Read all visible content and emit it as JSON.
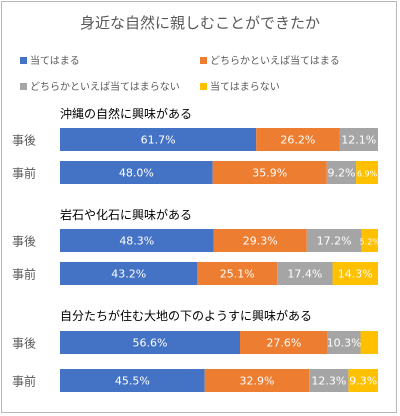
{
  "chart_data": {
    "type": "bar",
    "stacked": "percent",
    "orientation": "horizontal",
    "title": "身近な自然に親しむことができたか",
    "legend": [
      {
        "name": "当てはまる",
        "color": "#4472c4"
      },
      {
        "name": "どちらかといえば当てはまる",
        "color": "#ed7d31"
      },
      {
        "name": "どちらかといえば当てはまらない",
        "color": "#a5a5a5"
      },
      {
        "name": "当てはまらない",
        "color": "#ffc000"
      }
    ],
    "legend_position": "top",
    "groups": [
      {
        "title": "沖縄の自然に興味がある",
        "rows": [
          {
            "label": "事後",
            "values": [
              61.7,
              26.2,
              12.1,
              0
            ],
            "labels": [
              "61.7%",
              "26.2%",
              "12.1%",
              ""
            ]
          },
          {
            "label": "事前",
            "values": [
              48.0,
              35.9,
              9.2,
              6.9
            ],
            "labels": [
              "48.0%",
              "35.9%",
              "9.2%",
              "6.9%"
            ]
          }
        ]
      },
      {
        "title": "岩石や化石に興味がある",
        "rows": [
          {
            "label": "事後",
            "values": [
              48.3,
              29.3,
              17.2,
              5.2
            ],
            "labels": [
              "48.3%",
              "29.3%",
              "17.2%",
              "5.2%"
            ]
          },
          {
            "label": "事前",
            "values": [
              43.2,
              25.1,
              17.4,
              14.3
            ],
            "labels": [
              "43.2%",
              "25.1%",
              "17.4%",
              "14.3%"
            ]
          }
        ]
      },
      {
        "title": "自分たちが住む大地の下のようすに興味がある",
        "rows": [
          {
            "label": "事後",
            "values": [
              56.6,
              27.6,
              10.3,
              5.5
            ],
            "labels": [
              "56.6%",
              "27.6%",
              "10.3%",
              ""
            ]
          },
          {
            "label": "事前",
            "values": [
              45.5,
              32.9,
              12.3,
              9.3
            ],
            "labels": [
              "45.5%",
              "32.9%",
              "12.3%",
              "9.3%"
            ]
          }
        ]
      }
    ],
    "xlim": [
      0,
      100
    ]
  }
}
